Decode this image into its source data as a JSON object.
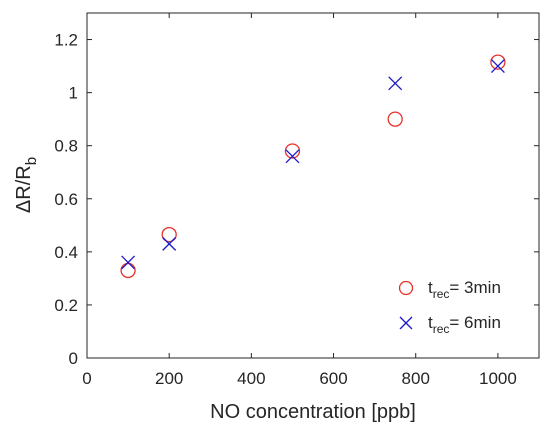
{
  "chart_data": {
    "type": "scatter",
    "xlabel": "NO concentration [ppb]",
    "ylabel": {
      "main": "ΔR/R",
      "sub": "b"
    },
    "xlim": [
      0,
      1100
    ],
    "ylim": [
      0,
      1.3
    ],
    "xticks": [
      0,
      200,
      400,
      600,
      800,
      1000
    ],
    "xtick_labels": [
      "0",
      "200",
      "400",
      "600",
      "800",
      "1000"
    ],
    "yticks": [
      0,
      0.2,
      0.4,
      0.6,
      0.8,
      1.0,
      1.2
    ],
    "ytick_labels": [
      "0",
      "0.2",
      "0.4",
      "0.6",
      "0.8",
      "1",
      "1.2"
    ],
    "grid": false,
    "legend_position": "bottom-right",
    "series": [
      {
        "legend": {
          "main": "t",
          "sub": "rec",
          "rest": "= 3min"
        },
        "marker": "circle",
        "color": "#e8302a",
        "points": [
          {
            "x": 100,
            "y": 0.33
          },
          {
            "x": 200,
            "y": 0.465
          },
          {
            "x": 500,
            "y": 0.78
          },
          {
            "x": 750,
            "y": 0.9
          },
          {
            "x": 1000,
            "y": 1.115
          }
        ]
      },
      {
        "legend": {
          "main": "t",
          "sub": "rec",
          "rest": "= 6min"
        },
        "marker": "x",
        "color": "#1a1acc",
        "points": [
          {
            "x": 100,
            "y": 0.36
          },
          {
            "x": 200,
            "y": 0.43
          },
          {
            "x": 500,
            "y": 0.76
          },
          {
            "x": 750,
            "y": 1.035
          },
          {
            "x": 1000,
            "y": 1.1
          }
        ]
      }
    ]
  }
}
